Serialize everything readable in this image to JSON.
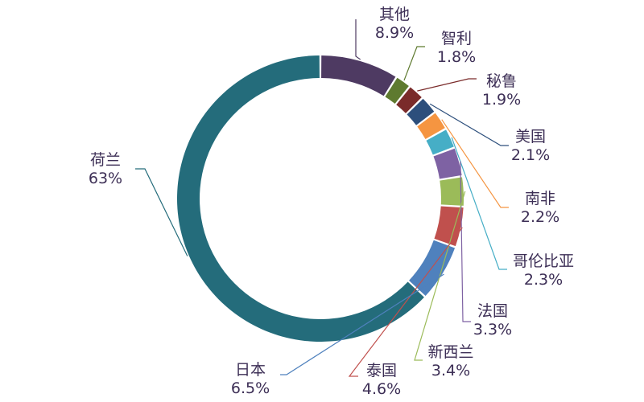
{
  "chart_data": {
    "type": "pie",
    "style": "donut",
    "title": "",
    "slices": [
      {
        "name": "其他",
        "value": 8.9,
        "label": "8.9%",
        "color": "#4e3a62"
      },
      {
        "name": "智利",
        "value": 1.8,
        "label": "1.8%",
        "color": "#5e7a2f"
      },
      {
        "name": "秘鲁",
        "value": 1.9,
        "label": "1.9%",
        "color": "#7a2b2a"
      },
      {
        "name": "美国",
        "value": 2.1,
        "label": "2.1%",
        "color": "#2d4f7c"
      },
      {
        "name": "南非",
        "value": 2.2,
        "label": "2.2%",
        "color": "#f59541"
      },
      {
        "name": "哥伦比亚",
        "value": 2.3,
        "label": "2.3%",
        "color": "#46aec6"
      },
      {
        "name": "法国",
        "value": 3.3,
        "label": "3.3%",
        "color": "#7e62a3"
      },
      {
        "name": "新西兰",
        "value": 3.4,
        "label": "3.4%",
        "color": "#9bbb59"
      },
      {
        "name": "泰国",
        "value": 4.6,
        "label": "4.6%",
        "color": "#c0504d"
      },
      {
        "name": "日本",
        "value": 6.5,
        "label": "6.5%",
        "color": "#4f81bd"
      },
      {
        "name": "荷兰",
        "value": 63,
        "label": "63%",
        "color": "#246c7b"
      }
    ]
  }
}
